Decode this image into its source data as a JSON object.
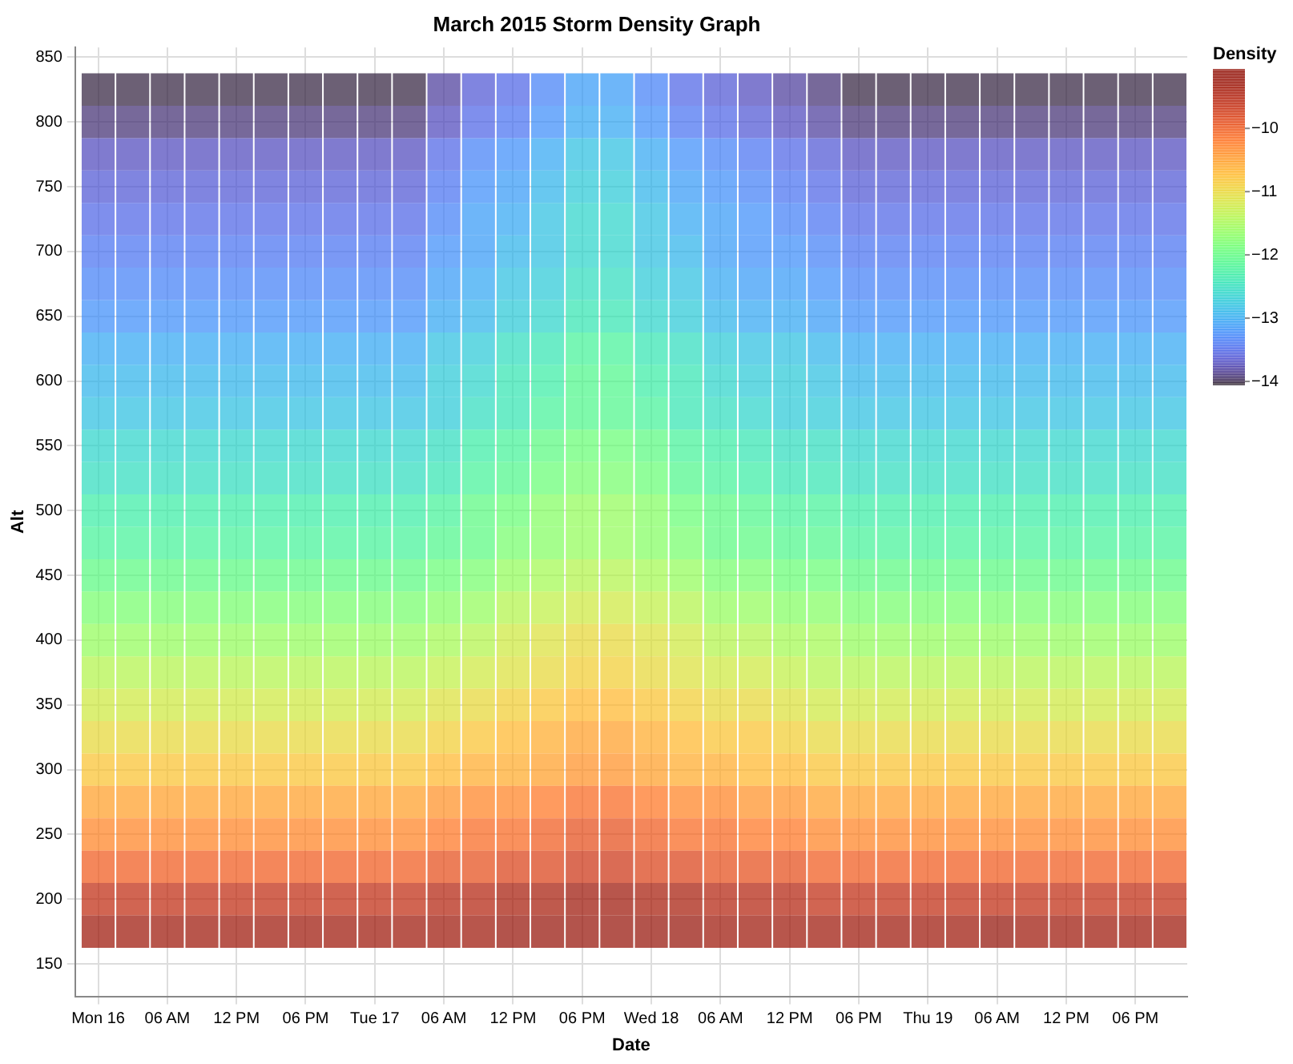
{
  "chart_data": {
    "type": "heatmap",
    "title": "March 2015 Storm Density Graph",
    "xlabel": "Date",
    "ylabel": "Alt",
    "clabel": "Density",
    "x": [
      "2015-03-16T00:00",
      "2015-03-16T03:00",
      "2015-03-16T06:00",
      "2015-03-16T09:00",
      "2015-03-16T12:00",
      "2015-03-16T15:00",
      "2015-03-16T18:00",
      "2015-03-16T21:00",
      "2015-03-17T00:00",
      "2015-03-17T03:00",
      "2015-03-17T06:00",
      "2015-03-17T09:00",
      "2015-03-17T12:00",
      "2015-03-17T15:00",
      "2015-03-17T18:00",
      "2015-03-17T21:00",
      "2015-03-18T00:00",
      "2015-03-18T03:00",
      "2015-03-18T06:00",
      "2015-03-18T09:00",
      "2015-03-18T12:00",
      "2015-03-18T15:00",
      "2015-03-18T18:00",
      "2015-03-18T21:00",
      "2015-03-19T00:00",
      "2015-03-19T03:00",
      "2015-03-19T06:00",
      "2015-03-19T09:00",
      "2015-03-19T12:00",
      "2015-03-19T15:00",
      "2015-03-19T18:00",
      "2015-03-19T21:00"
    ],
    "y_categories": [
      "850",
      null,
      "800",
      null,
      "750",
      null,
      "700",
      null,
      "650",
      null,
      "600",
      null,
      "550",
      null,
      "500",
      null,
      "450",
      null,
      "400",
      null,
      "350",
      null,
      "300",
      null,
      "250",
      null,
      "200",
      null,
      "150"
    ],
    "cells": [
      [
        null,
        null,
        null,
        null,
        null,
        null,
        null,
        null,
        null,
        null,
        null,
        null,
        null,
        null,
        null,
        null,
        null,
        null,
        null,
        null,
        null,
        null,
        null,
        null,
        null,
        null,
        null,
        null,
        null,
        null,
        null,
        null
      ],
      [
        -14.0,
        -14.0,
        -14.0,
        -14.0,
        -14.0,
        -14.0,
        -14.0,
        -14.0,
        -14.0,
        -14.0,
        -13.8,
        -13.6,
        -13.5,
        -13.3,
        -13.1,
        -13.1,
        -13.3,
        -13.5,
        -13.6,
        -13.7,
        -13.8,
        -13.9,
        -14.0,
        -14.0,
        -14.0,
        -14.0,
        -14.0,
        -14.0,
        -14.0,
        -14.0,
        -14.0,
        -14.0
      ],
      [
        -13.9,
        -13.9,
        -13.9,
        -13.9,
        -13.9,
        -13.9,
        -13.9,
        -13.9,
        -13.9,
        -13.9,
        -13.7,
        -13.5,
        -13.4,
        -13.2,
        -13.0,
        -13.0,
        -13.2,
        -13.4,
        -13.5,
        -13.6,
        -13.7,
        -13.8,
        -13.9,
        -13.9,
        -13.9,
        -13.9,
        -13.9,
        -13.9,
        -13.9,
        -13.9,
        -13.9,
        -13.9
      ],
      [
        -13.7,
        -13.7,
        -13.7,
        -13.7,
        -13.7,
        -13.7,
        -13.7,
        -13.7,
        -13.7,
        -13.7,
        -13.5,
        -13.3,
        -13.2,
        -13.0,
        -12.8,
        -12.8,
        -13.0,
        -13.2,
        -13.3,
        -13.4,
        -13.5,
        -13.6,
        -13.7,
        -13.7,
        -13.7,
        -13.7,
        -13.7,
        -13.7,
        -13.7,
        -13.7,
        -13.7,
        -13.7
      ],
      [
        -13.6,
        -13.6,
        -13.6,
        -13.6,
        -13.6,
        -13.6,
        -13.6,
        -13.6,
        -13.6,
        -13.6,
        -13.4,
        -13.2,
        -13.1,
        -12.9,
        -12.7,
        -12.7,
        -12.9,
        -13.1,
        -13.2,
        -13.3,
        -13.4,
        -13.5,
        -13.6,
        -13.6,
        -13.6,
        -13.6,
        -13.6,
        -13.6,
        -13.6,
        -13.6,
        -13.6,
        -13.6
      ],
      [
        -13.5,
        -13.5,
        -13.5,
        -13.5,
        -13.5,
        -13.5,
        -13.5,
        -13.5,
        -13.5,
        -13.5,
        -13.3,
        -13.1,
        -13.0,
        -12.8,
        -12.6,
        -12.6,
        -12.8,
        -13.0,
        -13.1,
        -13.2,
        -13.3,
        -13.4,
        -13.5,
        -13.5,
        -13.5,
        -13.5,
        -13.5,
        -13.5,
        -13.5,
        -13.5,
        -13.5,
        -13.5
      ],
      [
        -13.4,
        -13.4,
        -13.4,
        -13.4,
        -13.4,
        -13.4,
        -13.4,
        -13.4,
        -13.4,
        -13.4,
        -13.2,
        -13.1,
        -12.9,
        -12.8,
        -12.6,
        -12.6,
        -12.8,
        -12.9,
        -13.1,
        -13.2,
        -13.2,
        -13.3,
        -13.4,
        -13.4,
        -13.4,
        -13.4,
        -13.4,
        -13.4,
        -13.4,
        -13.4,
        -13.4,
        -13.4
      ],
      [
        -13.3,
        -13.3,
        -13.3,
        -13.3,
        -13.3,
        -13.3,
        -13.3,
        -13.3,
        -13.3,
        -13.3,
        -13.1,
        -13.0,
        -12.8,
        -12.7,
        -12.5,
        -12.5,
        -12.7,
        -12.8,
        -13.0,
        -13.1,
        -13.1,
        -13.2,
        -13.3,
        -13.3,
        -13.3,
        -13.3,
        -13.3,
        -13.3,
        -13.3,
        -13.3,
        -13.3,
        -13.3
      ],
      [
        -13.2,
        -13.2,
        -13.2,
        -13.2,
        -13.2,
        -13.2,
        -13.2,
        -13.2,
        -13.2,
        -13.2,
        -13.0,
        -12.9,
        -12.7,
        -12.6,
        -12.4,
        -12.4,
        -12.6,
        -12.7,
        -12.9,
        -13.0,
        -13.0,
        -13.1,
        -13.2,
        -13.2,
        -13.2,
        -13.2,
        -13.2,
        -13.2,
        -13.2,
        -13.2,
        -13.2,
        -13.2
      ],
      [
        -13.0,
        -13.0,
        -13.0,
        -13.0,
        -13.0,
        -13.0,
        -13.0,
        -13.0,
        -13.0,
        -13.0,
        -12.8,
        -12.7,
        -12.5,
        -12.4,
        -12.2,
        -12.2,
        -12.4,
        -12.5,
        -12.7,
        -12.8,
        -12.8,
        -12.9,
        -13.0,
        -13.0,
        -13.0,
        -13.0,
        -13.0,
        -13.0,
        -13.0,
        -13.0,
        -13.0,
        -13.0
      ],
      [
        -12.9,
        -12.9,
        -12.9,
        -12.9,
        -12.9,
        -12.9,
        -12.9,
        -12.9,
        -12.9,
        -12.9,
        -12.7,
        -12.6,
        -12.4,
        -12.3,
        -12.1,
        -12.1,
        -12.3,
        -12.4,
        -12.6,
        -12.7,
        -12.7,
        -12.8,
        -12.9,
        -12.9,
        -12.9,
        -12.9,
        -12.9,
        -12.9,
        -12.9,
        -12.9,
        -12.9,
        -12.9
      ],
      [
        -12.8,
        -12.8,
        -12.8,
        -12.8,
        -12.8,
        -12.8,
        -12.8,
        -12.8,
        -12.8,
        -12.8,
        -12.7,
        -12.5,
        -12.4,
        -12.2,
        -12.1,
        -12.1,
        -12.2,
        -12.4,
        -12.5,
        -12.6,
        -12.7,
        -12.7,
        -12.8,
        -12.8,
        -12.8,
        -12.8,
        -12.8,
        -12.8,
        -12.8,
        -12.8,
        -12.8,
        -12.8
      ],
      [
        -12.6,
        -12.6,
        -12.6,
        -12.6,
        -12.6,
        -12.6,
        -12.6,
        -12.6,
        -12.6,
        -12.6,
        -12.5,
        -12.3,
        -12.2,
        -12.0,
        -11.9,
        -11.9,
        -12.0,
        -12.2,
        -12.3,
        -12.4,
        -12.5,
        -12.5,
        -12.6,
        -12.6,
        -12.6,
        -12.6,
        -12.6,
        -12.6,
        -12.6,
        -12.6,
        -12.6,
        -12.6
      ],
      [
        -12.5,
        -12.5,
        -12.5,
        -12.5,
        -12.5,
        -12.5,
        -12.5,
        -12.5,
        -12.5,
        -12.5,
        -12.4,
        -12.2,
        -12.1,
        -11.9,
        -11.8,
        -11.8,
        -11.9,
        -12.1,
        -12.2,
        -12.3,
        -12.4,
        -12.4,
        -12.5,
        -12.5,
        -12.5,
        -12.5,
        -12.5,
        -12.5,
        -12.5,
        -12.5,
        -12.5,
        -12.5
      ],
      [
        -12.3,
        -12.3,
        -12.3,
        -12.3,
        -12.3,
        -12.3,
        -12.3,
        -12.3,
        -12.3,
        -12.3,
        -12.2,
        -12.0,
        -11.9,
        -11.7,
        -11.6,
        -11.6,
        -11.7,
        -11.9,
        -12.0,
        -12.1,
        -12.2,
        -12.2,
        -12.3,
        -12.3,
        -12.3,
        -12.3,
        -12.3,
        -12.3,
        -12.3,
        -12.3,
        -12.3,
        -12.3
      ],
      [
        -12.2,
        -12.2,
        -12.2,
        -12.2,
        -12.2,
        -12.2,
        -12.2,
        -12.2,
        -12.2,
        -12.2,
        -12.1,
        -12.0,
        -11.8,
        -11.7,
        -11.6,
        -11.6,
        -11.7,
        -11.8,
        -12.0,
        -12.0,
        -12.1,
        -12.1,
        -12.2,
        -12.2,
        -12.2,
        -12.2,
        -12.2,
        -12.2,
        -12.2,
        -12.2,
        -12.2,
        -12.2
      ],
      [
        -12.0,
        -12.0,
        -12.0,
        -12.0,
        -12.0,
        -12.0,
        -12.0,
        -12.0,
        -12.0,
        -12.0,
        -11.9,
        -11.8,
        -11.6,
        -11.5,
        -11.4,
        -11.4,
        -11.5,
        -11.6,
        -11.8,
        -11.8,
        -11.9,
        -11.9,
        -12.0,
        -12.0,
        -12.0,
        -12.0,
        -12.0,
        -12.0,
        -12.0,
        -12.0,
        -12.0,
        -12.0
      ],
      [
        -11.8,
        -11.8,
        -11.8,
        -11.8,
        -11.8,
        -11.8,
        -11.8,
        -11.8,
        -11.8,
        -11.8,
        -11.7,
        -11.6,
        -11.4,
        -11.3,
        -11.2,
        -11.2,
        -11.3,
        -11.4,
        -11.6,
        -11.6,
        -11.7,
        -11.7,
        -11.8,
        -11.8,
        -11.8,
        -11.8,
        -11.8,
        -11.8,
        -11.8,
        -11.8,
        -11.8,
        -11.8
      ],
      [
        -11.6,
        -11.6,
        -11.6,
        -11.6,
        -11.6,
        -11.6,
        -11.6,
        -11.6,
        -11.6,
        -11.6,
        -11.5,
        -11.4,
        -11.2,
        -11.1,
        -11.0,
        -11.0,
        -11.1,
        -11.2,
        -11.4,
        -11.4,
        -11.5,
        -11.5,
        -11.6,
        -11.6,
        -11.6,
        -11.6,
        -11.6,
        -11.6,
        -11.6,
        -11.6,
        -11.6,
        -11.6
      ],
      [
        -11.4,
        -11.4,
        -11.4,
        -11.4,
        -11.4,
        -11.4,
        -11.4,
        -11.4,
        -11.4,
        -11.4,
        -11.3,
        -11.2,
        -11.1,
        -11.0,
        -10.9,
        -10.9,
        -11.0,
        -11.1,
        -11.2,
        -11.2,
        -11.3,
        -11.4,
        -11.4,
        -11.4,
        -11.4,
        -11.4,
        -11.4,
        -11.4,
        -11.4,
        -11.4,
        -11.4,
        -11.4
      ],
      [
        -11.2,
        -11.2,
        -11.2,
        -11.2,
        -11.2,
        -11.2,
        -11.2,
        -11.2,
        -11.2,
        -11.2,
        -11.1,
        -11.0,
        -10.9,
        -10.8,
        -10.7,
        -10.7,
        -10.8,
        -10.9,
        -11.0,
        -11.0,
        -11.1,
        -11.2,
        -11.2,
        -11.2,
        -11.2,
        -11.2,
        -11.2,
        -11.2,
        -11.2,
        -11.2,
        -11.2,
        -11.2
      ],
      [
        -11.0,
        -11.0,
        -11.0,
        -11.0,
        -11.0,
        -11.0,
        -11.0,
        -11.0,
        -11.0,
        -11.0,
        -10.9,
        -10.8,
        -10.7,
        -10.6,
        -10.5,
        -10.5,
        -10.6,
        -10.7,
        -10.8,
        -10.8,
        -10.9,
        -11.0,
        -11.0,
        -11.0,
        -11.0,
        -11.0,
        -11.0,
        -11.0,
        -11.0,
        -11.0,
        -11.0,
        -11.0
      ],
      [
        -10.8,
        -10.8,
        -10.8,
        -10.8,
        -10.8,
        -10.8,
        -10.8,
        -10.8,
        -10.8,
        -10.8,
        -10.7,
        -10.6,
        -10.6,
        -10.5,
        -10.4,
        -10.4,
        -10.5,
        -10.6,
        -10.6,
        -10.7,
        -10.7,
        -10.8,
        -10.8,
        -10.8,
        -10.8,
        -10.8,
        -10.8,
        -10.8,
        -10.8,
        -10.8,
        -10.8,
        -10.8
      ],
      [
        -10.5,
        -10.5,
        -10.5,
        -10.5,
        -10.5,
        -10.5,
        -10.5,
        -10.5,
        -10.5,
        -10.5,
        -10.4,
        -10.3,
        -10.3,
        -10.2,
        -10.1,
        -10.1,
        -10.2,
        -10.3,
        -10.3,
        -10.4,
        -10.4,
        -10.5,
        -10.5,
        -10.5,
        -10.5,
        -10.5,
        -10.5,
        -10.5,
        -10.5,
        -10.5,
        -10.5,
        -10.5
      ],
      [
        -10.3,
        -10.3,
        -10.3,
        -10.3,
        -10.3,
        -10.3,
        -10.3,
        -10.3,
        -10.3,
        -10.3,
        -10.2,
        -10.1,
        -10.1,
        -10.0,
        -9.9,
        -9.9,
        -10.0,
        -10.1,
        -10.1,
        -10.2,
        -10.2,
        -10.3,
        -10.3,
        -10.3,
        -10.3,
        -10.3,
        -10.3,
        -10.3,
        -10.3,
        -10.3,
        -10.3,
        -10.3
      ],
      [
        -10.0,
        -10.0,
        -10.0,
        -10.0,
        -10.0,
        -10.0,
        -10.0,
        -10.0,
        -10.0,
        -10.0,
        -9.9,
        -9.9,
        -9.8,
        -9.8,
        -9.7,
        -9.7,
        -9.8,
        -9.8,
        -9.9,
        -9.9,
        -9.9,
        -10.0,
        -10.0,
        -10.0,
        -10.0,
        -10.0,
        -10.0,
        -10.0,
        -10.0,
        -10.0,
        -10.0,
        -10.0
      ],
      [
        -9.6,
        -9.6,
        -9.6,
        -9.6,
        -9.6,
        -9.6,
        -9.6,
        -9.6,
        -9.6,
        -9.6,
        -9.5,
        -9.5,
        -9.4,
        -9.4,
        -9.3,
        -9.3,
        -9.4,
        -9.4,
        -9.5,
        -9.5,
        -9.5,
        -9.6,
        -9.6,
        -9.6,
        -9.6,
        -9.6,
        -9.6,
        -9.6,
        -9.6,
        -9.6,
        -9.6,
        -9.6
      ],
      [
        -9.3,
        -9.3,
        -9.3,
        -9.3,
        -9.3,
        -9.3,
        -9.3,
        -9.3,
        -9.3,
        -9.3,
        -9.3,
        -9.3,
        -9.2,
        -9.2,
        -9.2,
        -9.2,
        -9.2,
        -9.2,
        -9.3,
        -9.3,
        -9.3,
        -9.3,
        -9.3,
        -9.3,
        -9.3,
        -9.3,
        -9.1,
        -9.3,
        -9.3,
        -9.3,
        -9.3,
        -9.3
      ],
      [
        null,
        null,
        null,
        null,
        null,
        null,
        null,
        null,
        null,
        null,
        null,
        null,
        null,
        null,
        null,
        null,
        null,
        null,
        null,
        null,
        null,
        null,
        null,
        null,
        null,
        null,
        null,
        null,
        null,
        null,
        null,
        null
      ]
    ],
    "xlim": [
      "2015-03-15T22:00",
      "2015-03-19T22:30"
    ],
    "xticks": [
      {
        "value": "2015-03-16T00:00",
        "label": "Mon 16"
      },
      {
        "value": "2015-03-16T06:00",
        "label": "06 AM"
      },
      {
        "value": "2015-03-16T12:00",
        "label": "12 PM"
      },
      {
        "value": "2015-03-16T18:00",
        "label": "06 PM"
      },
      {
        "value": "2015-03-17T00:00",
        "label": "Tue 17"
      },
      {
        "value": "2015-03-17T06:00",
        "label": "06 AM"
      },
      {
        "value": "2015-03-17T12:00",
        "label": "12 PM"
      },
      {
        "value": "2015-03-17T18:00",
        "label": "06 PM"
      },
      {
        "value": "2015-03-18T00:00",
        "label": "Wed 18"
      },
      {
        "value": "2015-03-18T06:00",
        "label": "06 AM"
      },
      {
        "value": "2015-03-18T12:00",
        "label": "12 PM"
      },
      {
        "value": "2015-03-18T18:00",
        "label": "06 PM"
      },
      {
        "value": "2015-03-19T00:00",
        "label": "Thu 19"
      },
      {
        "value": "2015-03-19T06:00",
        "label": "06 AM"
      },
      {
        "value": "2015-03-19T12:00",
        "label": "12 PM"
      },
      {
        "value": "2015-03-19T18:00",
        "label": "06 PM"
      }
    ],
    "clim": [
      -14.05,
      -9.06
    ],
    "cticks": [
      {
        "value": -14,
        "label": "−14"
      },
      {
        "value": -13,
        "label": "−13"
      },
      {
        "value": -12,
        "label": "−12"
      },
      {
        "value": -11,
        "label": "−11"
      },
      {
        "value": -10,
        "label": "−10"
      }
    ],
    "grid": true
  }
}
